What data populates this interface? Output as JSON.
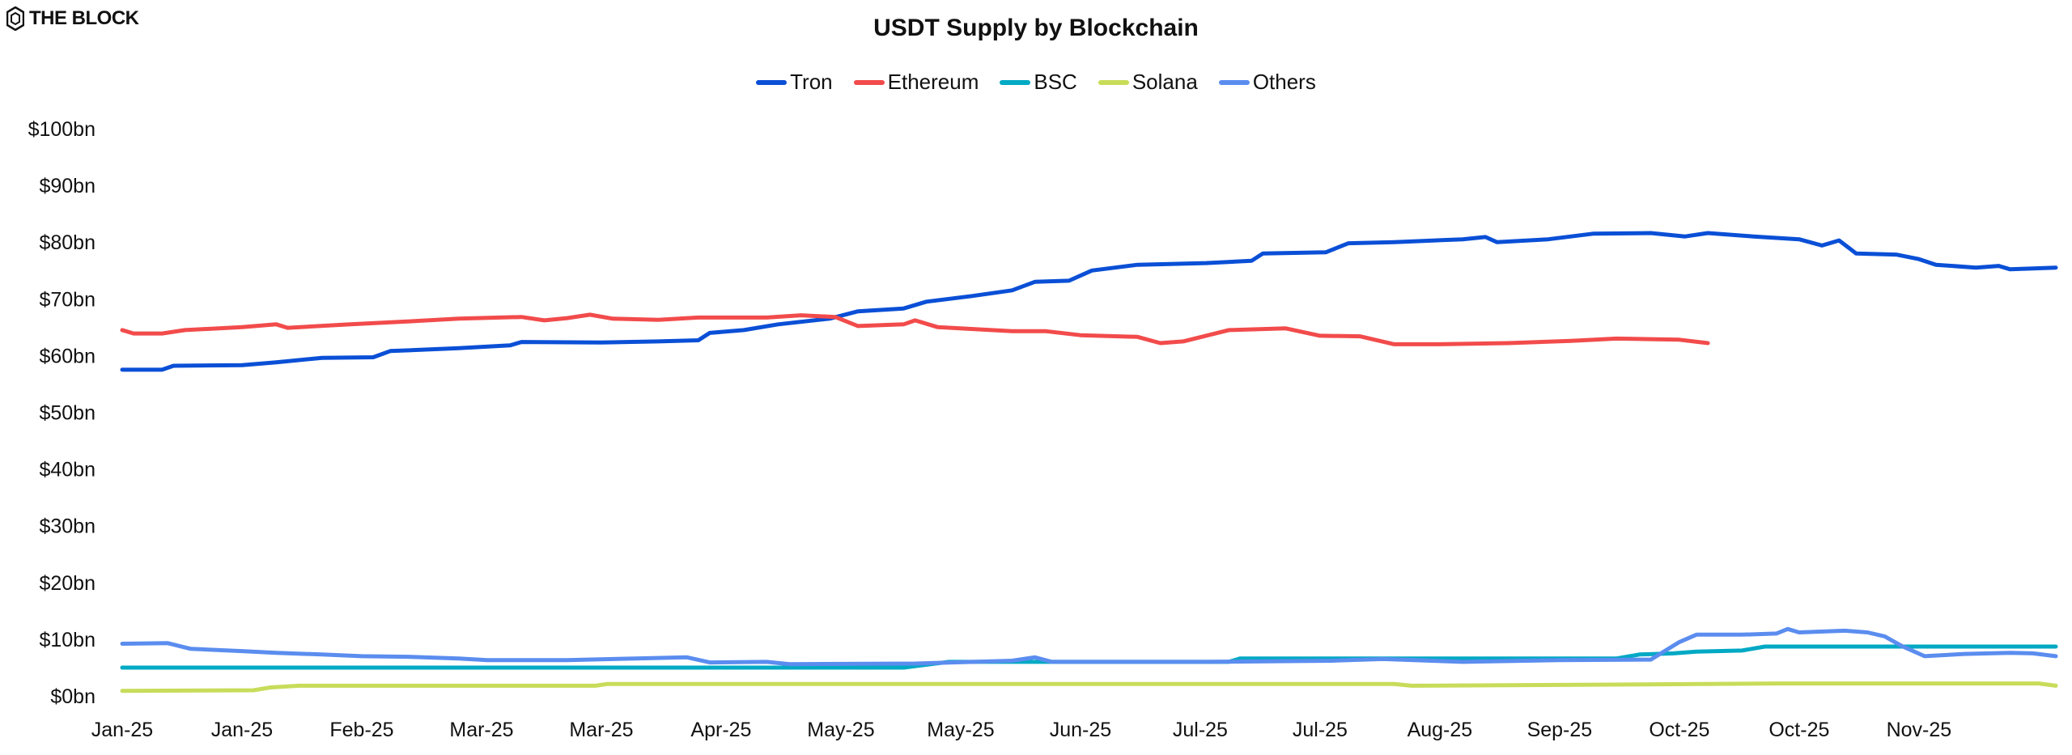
{
  "brand": {
    "logo_text": "THE BLOCK"
  },
  "chart_data": {
    "type": "line",
    "title": "USDT Supply by Blockchain",
    "xlabel": "",
    "ylabel": "",
    "ylim": [
      0,
      100
    ],
    "xlim": [
      "2025-01-01",
      "2025-12-06"
    ],
    "y_ticks": [
      "$0bn",
      "$10bn",
      "$20bn",
      "$30bn",
      "$40bn",
      "$50bn",
      "$60bn",
      "$70bn",
      "$80bn",
      "$90bn",
      "$100bn"
    ],
    "x_ticks": [
      {
        "date": "2025-01-01",
        "label": "Jan-25"
      },
      {
        "date": "2025-01-22",
        "label": "Jan-25"
      },
      {
        "date": "2025-02-12",
        "label": "Feb-25"
      },
      {
        "date": "2025-03-05",
        "label": "Mar-25"
      },
      {
        "date": "2025-03-26",
        "label": "Mar-25"
      },
      {
        "date": "2025-04-16",
        "label": "Apr-25"
      },
      {
        "date": "2025-05-07",
        "label": "May-25"
      },
      {
        "date": "2025-05-28",
        "label": "May-25"
      },
      {
        "date": "2025-06-18",
        "label": "Jun-25"
      },
      {
        "date": "2025-07-09",
        "label": "Jul-25"
      },
      {
        "date": "2025-07-30",
        "label": "Jul-25"
      },
      {
        "date": "2025-08-20",
        "label": "Aug-25"
      },
      {
        "date": "2025-09-10",
        "label": "Sep-25"
      },
      {
        "date": "2025-10-01",
        "label": "Oct-25"
      },
      {
        "date": "2025-10-22",
        "label": "Oct-25"
      },
      {
        "date": "2025-11-12",
        "label": "Nov-25"
      }
    ],
    "grid": false,
    "legend_position": "top",
    "series": [
      {
        "name": "Tron",
        "color": "#0a4fd6",
        "points": [
          [
            "2025-01-01",
            57.5
          ],
          [
            "2025-01-08",
            57.5
          ],
          [
            "2025-01-10",
            58.2
          ],
          [
            "2025-01-22",
            58.3
          ],
          [
            "2025-01-28",
            58.8
          ],
          [
            "2025-02-05",
            59.6
          ],
          [
            "2025-02-14",
            59.7
          ],
          [
            "2025-02-17",
            60.8
          ],
          [
            "2025-03-01",
            61.3
          ],
          [
            "2025-03-10",
            61.8
          ],
          [
            "2025-03-12",
            62.4
          ],
          [
            "2025-03-26",
            62.3
          ],
          [
            "2025-04-05",
            62.5
          ],
          [
            "2025-04-12",
            62.7
          ],
          [
            "2025-04-14",
            64.0
          ],
          [
            "2025-04-20",
            64.5
          ],
          [
            "2025-04-26",
            65.5
          ],
          [
            "2025-05-05",
            66.5
          ],
          [
            "2025-05-10",
            67.8
          ],
          [
            "2025-05-18",
            68.3
          ],
          [
            "2025-05-22",
            69.5
          ],
          [
            "2025-05-30",
            70.5
          ],
          [
            "2025-06-06",
            71.5
          ],
          [
            "2025-06-10",
            73.0
          ],
          [
            "2025-06-16",
            73.2
          ],
          [
            "2025-06-20",
            75.0
          ],
          [
            "2025-06-28",
            76.0
          ],
          [
            "2025-07-10",
            76.3
          ],
          [
            "2025-07-18",
            76.7
          ],
          [
            "2025-07-20",
            78.0
          ],
          [
            "2025-07-31",
            78.2
          ],
          [
            "2025-08-04",
            79.8
          ],
          [
            "2025-08-12",
            80.0
          ],
          [
            "2025-08-24",
            80.5
          ],
          [
            "2025-08-28",
            80.9
          ],
          [
            "2025-08-30",
            80.0
          ],
          [
            "2025-09-08",
            80.5
          ],
          [
            "2025-09-16",
            81.5
          ],
          [
            "2025-09-26",
            81.6
          ],
          [
            "2025-10-02",
            81.0
          ],
          [
            "2025-10-06",
            81.6
          ],
          [
            "2025-10-14",
            81.0
          ],
          [
            "2025-10-22",
            80.5
          ],
          [
            "2025-10-26",
            79.4
          ],
          [
            "2025-10-29",
            80.3
          ],
          [
            "2025-11-01",
            78.0
          ],
          [
            "2025-11-08",
            77.8
          ],
          [
            "2025-11-12",
            77.0
          ],
          [
            "2025-11-15",
            76.0
          ],
          [
            "2025-11-22",
            75.5
          ],
          [
            "2025-11-26",
            75.8
          ],
          [
            "2025-11-28",
            75.2
          ],
          [
            "2025-12-06",
            75.5
          ]
        ]
      },
      {
        "name": "Ethereum",
        "color": "#f24b4b",
        "points": [
          [
            "2025-01-01",
            64.5
          ],
          [
            "2025-01-03",
            63.9
          ],
          [
            "2025-01-08",
            63.9
          ],
          [
            "2025-01-12",
            64.5
          ],
          [
            "2025-01-22",
            65.0
          ],
          [
            "2025-01-28",
            65.5
          ],
          [
            "2025-01-30",
            64.9
          ],
          [
            "2025-02-10",
            65.5
          ],
          [
            "2025-02-20",
            66.0
          ],
          [
            "2025-03-01",
            66.5
          ],
          [
            "2025-03-12",
            66.8
          ],
          [
            "2025-03-16",
            66.2
          ],
          [
            "2025-03-20",
            66.6
          ],
          [
            "2025-03-24",
            67.2
          ],
          [
            "2025-03-28",
            66.5
          ],
          [
            "2025-04-05",
            66.3
          ],
          [
            "2025-04-12",
            66.7
          ],
          [
            "2025-04-24",
            66.7
          ],
          [
            "2025-04-30",
            67.1
          ],
          [
            "2025-05-06",
            66.8
          ],
          [
            "2025-05-10",
            65.2
          ],
          [
            "2025-05-18",
            65.5
          ],
          [
            "2025-05-20",
            66.2
          ],
          [
            "2025-05-24",
            65.0
          ],
          [
            "2025-06-06",
            64.3
          ],
          [
            "2025-06-12",
            64.3
          ],
          [
            "2025-06-18",
            63.6
          ],
          [
            "2025-06-28",
            63.3
          ],
          [
            "2025-07-02",
            62.2
          ],
          [
            "2025-07-06",
            62.5
          ],
          [
            "2025-07-14",
            64.5
          ],
          [
            "2025-07-24",
            64.8
          ],
          [
            "2025-07-30",
            63.5
          ],
          [
            "2025-08-06",
            63.4
          ],
          [
            "2025-08-12",
            62.0
          ],
          [
            "2025-08-20",
            62.0
          ],
          [
            "2025-09-01",
            62.2
          ],
          [
            "2025-09-12",
            62.6
          ],
          [
            "2025-09-20",
            63.0
          ],
          [
            "2025-10-01",
            62.8
          ],
          [
            "2025-10-06",
            62.2
          ]
        ]
      },
      {
        "name": "BSC",
        "color": "#00a9c4",
        "points": [
          [
            "2025-01-01",
            5.0
          ],
          [
            "2025-05-18",
            5.0
          ],
          [
            "2025-05-22",
            5.5
          ],
          [
            "2025-05-26",
            6.0
          ],
          [
            "2025-07-14",
            6.0
          ],
          [
            "2025-07-16",
            6.6
          ],
          [
            "2025-09-20",
            6.6
          ],
          [
            "2025-09-24",
            7.3
          ],
          [
            "2025-09-30",
            7.5
          ],
          [
            "2025-10-04",
            7.8
          ],
          [
            "2025-10-12",
            8.0
          ],
          [
            "2025-10-16",
            8.7
          ],
          [
            "2025-12-06",
            8.7
          ]
        ]
      },
      {
        "name": "Solana",
        "color": "#c8dc5a",
        "points": [
          [
            "2025-01-01",
            0.9
          ],
          [
            "2025-01-24",
            1.0
          ],
          [
            "2025-01-27",
            1.5
          ],
          [
            "2025-02-01",
            1.8
          ],
          [
            "2025-03-25",
            1.8
          ],
          [
            "2025-03-27",
            2.1
          ],
          [
            "2025-08-12",
            2.1
          ],
          [
            "2025-08-15",
            1.8
          ],
          [
            "2025-10-05",
            2.1
          ],
          [
            "2025-10-18",
            2.2
          ],
          [
            "2025-11-20",
            2.2
          ],
          [
            "2025-12-03",
            2.2
          ],
          [
            "2025-12-06",
            1.8
          ]
        ]
      },
      {
        "name": "Others",
        "color": "#5b8def",
        "points": [
          [
            "2025-01-01",
            9.2
          ],
          [
            "2025-01-09",
            9.3
          ],
          [
            "2025-01-13",
            8.3
          ],
          [
            "2025-01-22",
            7.9
          ],
          [
            "2025-01-28",
            7.6
          ],
          [
            "2025-02-05",
            7.3
          ],
          [
            "2025-02-12",
            7.0
          ],
          [
            "2025-02-20",
            6.9
          ],
          [
            "2025-03-01",
            6.6
          ],
          [
            "2025-03-06",
            6.3
          ],
          [
            "2025-03-20",
            6.3
          ],
          [
            "2025-04-01",
            6.6
          ],
          [
            "2025-04-10",
            6.8
          ],
          [
            "2025-04-14",
            5.9
          ],
          [
            "2025-04-24",
            6.0
          ],
          [
            "2025-04-28",
            5.6
          ],
          [
            "2025-05-20",
            5.7
          ],
          [
            "2025-06-06",
            6.2
          ],
          [
            "2025-06-10",
            6.8
          ],
          [
            "2025-06-13",
            6.0
          ],
          [
            "2025-07-10",
            6.0
          ],
          [
            "2025-08-01",
            6.2
          ],
          [
            "2025-08-10",
            6.5
          ],
          [
            "2025-08-24",
            6.0
          ],
          [
            "2025-09-10",
            6.3
          ],
          [
            "2025-09-26",
            6.4
          ],
          [
            "2025-10-01",
            9.5
          ],
          [
            "2025-10-04",
            10.8
          ],
          [
            "2025-10-12",
            10.8
          ],
          [
            "2025-10-18",
            11.0
          ],
          [
            "2025-10-20",
            11.8
          ],
          [
            "2025-10-22",
            11.2
          ],
          [
            "2025-10-30",
            11.5
          ],
          [
            "2025-11-03",
            11.2
          ],
          [
            "2025-11-06",
            10.5
          ],
          [
            "2025-11-09",
            8.8
          ],
          [
            "2025-11-13",
            7.0
          ],
          [
            "2025-11-20",
            7.4
          ],
          [
            "2025-11-28",
            7.6
          ],
          [
            "2025-12-02",
            7.5
          ],
          [
            "2025-12-06",
            7.0
          ]
        ]
      }
    ]
  }
}
